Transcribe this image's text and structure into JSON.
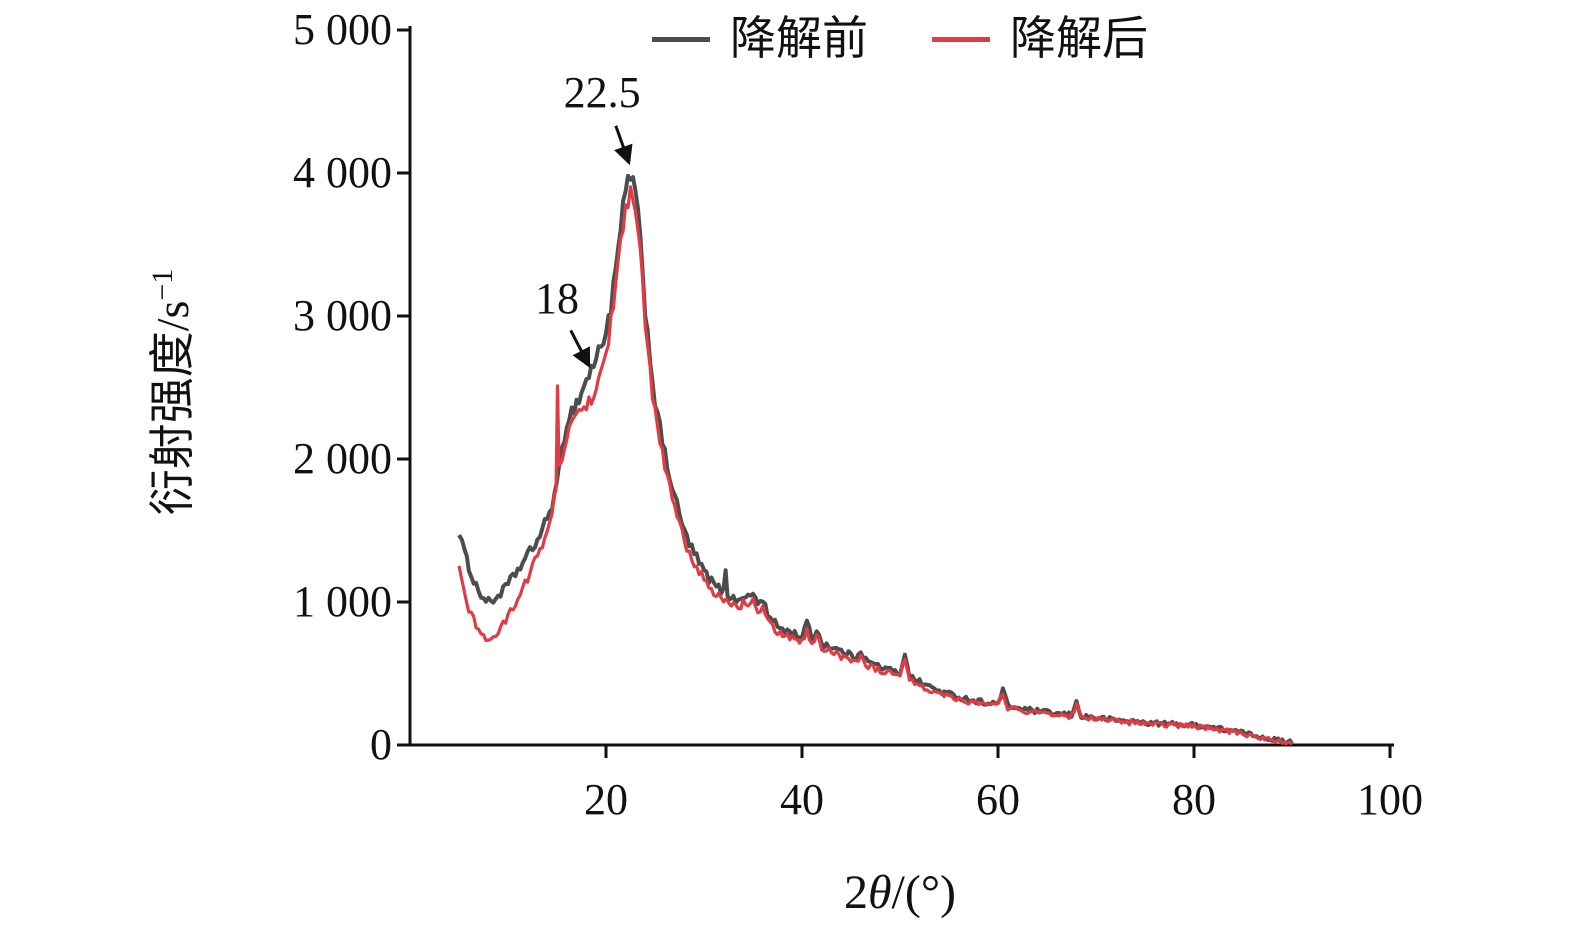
{
  "figure": {
    "background": "#ffffff",
    "text_color": "#111111"
  },
  "axes": {
    "ylabel_text": "衍射强度/s",
    "ylabel_sup": "−1",
    "xlabel_pre": "2",
    "xlabel_theta": "θ",
    "xlabel_post": "/(°)"
  },
  "chart_data": {
    "type": "line",
    "title": "",
    "xlabel": "2θ/(°)",
    "ylabel": "衍射强度/s⁻¹",
    "xlim": [
      0,
      100
    ],
    "ylim": [
      0,
      5000
    ],
    "grid": false,
    "legend_position": "top-center",
    "x_ticks": [
      {
        "v": 20,
        "label": "20"
      },
      {
        "v": 40,
        "label": "40"
      },
      {
        "v": 60,
        "label": "60"
      },
      {
        "v": 80,
        "label": "80"
      },
      {
        "v": 100,
        "label": "100"
      }
    ],
    "y_ticks": [
      {
        "v": 0,
        "label": "0"
      },
      {
        "v": 1000,
        "label": "1 000"
      },
      {
        "v": 2000,
        "label": "2 000"
      },
      {
        "v": 3000,
        "label": "3 000"
      },
      {
        "v": 4000,
        "label": "4 000"
      },
      {
        "v": 5000,
        "label": "5 000"
      }
    ],
    "annotations": [
      {
        "label": "22.5",
        "text_x": 19.6,
        "text_y": 4560,
        "arrow_from_x": 21.0,
        "arrow_from_y": 4330,
        "arrow_to_x": 22.3,
        "arrow_to_y": 4080
      },
      {
        "label": "18",
        "text_x": 15.0,
        "text_y": 3120,
        "arrow_from_x": 16.4,
        "arrow_from_y": 2900,
        "arrow_to_x": 18.2,
        "arrow_to_y": 2660
      }
    ],
    "series": [
      {
        "name": "降解前",
        "color": "#4d4d4d",
        "points": [
          [
            5,
            1500
          ],
          [
            5.3,
            1420
          ],
          [
            5.6,
            1330
          ],
          [
            6,
            1250
          ],
          [
            6.5,
            1150
          ],
          [
            7,
            1080
          ],
          [
            7.5,
            1025
          ],
          [
            8,
            1000
          ],
          [
            8.5,
            1010
          ],
          [
            9,
            1045
          ],
          [
            9.5,
            1080
          ],
          [
            10,
            1125
          ],
          [
            10.5,
            1170
          ],
          [
            11,
            1225
          ],
          [
            11.5,
            1270
          ],
          [
            12,
            1325
          ],
          [
            12.5,
            1375
          ],
          [
            13,
            1435
          ],
          [
            13.5,
            1500
          ],
          [
            14,
            1585
          ],
          [
            14.5,
            1690
          ],
          [
            15,
            1810
          ],
          [
            15.5,
            2060
          ],
          [
            16,
            2260
          ],
          [
            16.5,
            2330
          ],
          [
            17,
            2390
          ],
          [
            17.5,
            2460
          ],
          [
            18,
            2555
          ],
          [
            18.5,
            2625
          ],
          [
            19,
            2705
          ],
          [
            19.5,
            2790
          ],
          [
            20,
            2905
          ],
          [
            20.5,
            3060
          ],
          [
            21,
            3310
          ],
          [
            21.5,
            3610
          ],
          [
            22,
            3860
          ],
          [
            22.5,
            4000
          ],
          [
            23,
            3860
          ],
          [
            23.5,
            3510
          ],
          [
            24,
            3060
          ],
          [
            24.5,
            2710
          ],
          [
            25,
            2410
          ],
          [
            25.5,
            2210
          ],
          [
            26,
            2030
          ],
          [
            26.5,
            1880
          ],
          [
            27,
            1740
          ],
          [
            27.5,
            1610
          ],
          [
            28,
            1490
          ],
          [
            28.5,
            1410
          ],
          [
            29,
            1340
          ],
          [
            29.5,
            1275
          ],
          [
            30,
            1215
          ],
          [
            30.5,
            1165
          ],
          [
            31,
            1125
          ],
          [
            31.5,
            1095
          ],
          [
            32,
            1070
          ],
          [
            32.2,
            1240
          ],
          [
            32.4,
            1055
          ],
          [
            33,
            1025
          ],
          [
            33.5,
            1000
          ],
          [
            34,
            1055
          ],
          [
            34.5,
            1025
          ],
          [
            35,
            1065
          ],
          [
            35.5,
            985
          ],
          [
            36,
            1025
          ],
          [
            36.5,
            905
          ],
          [
            37,
            865
          ],
          [
            37.5,
            835
          ],
          [
            38,
            815
          ],
          [
            38.5,
            795
          ],
          [
            39,
            785
          ],
          [
            39.5,
            770
          ],
          [
            40,
            760
          ],
          [
            40.5,
            855
          ],
          [
            41,
            745
          ],
          [
            41.5,
            805
          ],
          [
            42,
            715
          ],
          [
            42.5,
            700
          ],
          [
            43,
            685
          ],
          [
            43.5,
            670
          ],
          [
            44,
            655
          ],
          [
            44.5,
            640
          ],
          [
            45,
            625
          ],
          [
            45.5,
            615
          ],
          [
            46,
            665
          ],
          [
            46.5,
            595
          ],
          [
            47,
            575
          ],
          [
            47.5,
            560
          ],
          [
            48,
            548
          ],
          [
            48.5,
            535
          ],
          [
            49,
            522
          ],
          [
            49.5,
            510
          ],
          [
            50,
            500
          ],
          [
            50.5,
            645
          ],
          [
            51,
            475
          ],
          [
            51.5,
            458
          ],
          [
            52,
            442
          ],
          [
            52.5,
            424
          ],
          [
            53,
            408
          ],
          [
            53.5,
            393
          ],
          [
            54,
            380
          ],
          [
            54.5,
            368
          ],
          [
            55,
            356
          ],
          [
            55.5,
            345
          ],
          [
            56,
            336
          ],
          [
            56.5,
            327
          ],
          [
            57,
            319
          ],
          [
            57.5,
            312
          ],
          [
            58,
            306
          ],
          [
            58.5,
            300
          ],
          [
            59,
            295
          ],
          [
            59.5,
            290
          ],
          [
            60,
            286
          ],
          [
            60.5,
            392
          ],
          [
            61,
            272
          ],
          [
            61.5,
            265
          ],
          [
            62,
            258
          ],
          [
            62.5,
            252
          ],
          [
            63,
            246
          ],
          [
            63.5,
            241
          ],
          [
            64,
            236
          ],
          [
            64.5,
            231
          ],
          [
            65,
            227
          ],
          [
            65.5,
            222
          ],
          [
            66,
            218
          ],
          [
            66.5,
            215
          ],
          [
            67,
            212
          ],
          [
            67.5,
            209
          ],
          [
            68,
            296
          ],
          [
            68.5,
            204
          ],
          [
            69,
            198
          ],
          [
            69.5,
            194
          ],
          [
            70,
            190
          ],
          [
            71,
            182
          ],
          [
            72,
            175
          ],
          [
            73,
            168
          ],
          [
            74,
            162
          ],
          [
            75,
            157
          ],
          [
            76,
            152
          ],
          [
            77,
            149
          ],
          [
            78,
            146
          ],
          [
            79,
            143
          ],
          [
            80,
            139
          ],
          [
            81,
            132
          ],
          [
            82,
            122
          ],
          [
            83,
            110
          ],
          [
            84,
            98
          ],
          [
            85,
            85
          ],
          [
            86,
            70
          ],
          [
            87,
            55
          ],
          [
            88,
            40
          ],
          [
            89,
            28
          ],
          [
            90,
            18
          ]
        ]
      },
      {
        "name": "降解后",
        "color": "#e23b44",
        "points": [
          [
            5,
            1220
          ],
          [
            5.3,
            1130
          ],
          [
            5.6,
            1040
          ],
          [
            6,
            955
          ],
          [
            6.5,
            870
          ],
          [
            7,
            805
          ],
          [
            7.5,
            762
          ],
          [
            8,
            740
          ],
          [
            8.5,
            752
          ],
          [
            9,
            790
          ],
          [
            9.5,
            840
          ],
          [
            10,
            900
          ],
          [
            10.5,
            960
          ],
          [
            11,
            1030
          ],
          [
            11.5,
            1100
          ],
          [
            12,
            1170
          ],
          [
            12.5,
            1245
          ],
          [
            13,
            1320
          ],
          [
            13.5,
            1400
          ],
          [
            14,
            1500
          ],
          [
            14.5,
            1640
          ],
          [
            14.9,
            1800
          ],
          [
            15.05,
            2480
          ],
          [
            15.2,
            1960
          ],
          [
            15.5,
            2010
          ],
          [
            16,
            2160
          ],
          [
            16.5,
            2235
          ],
          [
            17,
            2285
          ],
          [
            17.5,
            2325
          ],
          [
            18,
            2385
          ],
          [
            18.5,
            2435
          ],
          [
            19,
            2505
          ],
          [
            19.5,
            2605
          ],
          [
            20,
            2755
          ],
          [
            20.5,
            2955
          ],
          [
            21,
            3205
          ],
          [
            21.5,
            3505
          ],
          [
            22,
            3755
          ],
          [
            22.5,
            3900
          ],
          [
            23,
            3755
          ],
          [
            23.5,
            3405
          ],
          [
            24,
            2955
          ],
          [
            24.5,
            2605
          ],
          [
            25,
            2325
          ],
          [
            25.5,
            2125
          ],
          [
            26,
            1955
          ],
          [
            26.5,
            1805
          ],
          [
            27,
            1665
          ],
          [
            27.5,
            1535
          ],
          [
            28,
            1425
          ],
          [
            28.5,
            1345
          ],
          [
            29,
            1275
          ],
          [
            29.5,
            1215
          ],
          [
            30,
            1155
          ],
          [
            30.5,
            1112
          ],
          [
            31,
            1072
          ],
          [
            31.5,
            1042
          ],
          [
            32,
            1015
          ],
          [
            33,
            978
          ],
          [
            33.5,
            952
          ],
          [
            34,
            992
          ],
          [
            34.5,
            962
          ],
          [
            35,
            1002
          ],
          [
            35.5,
            932
          ],
          [
            36,
            962
          ],
          [
            36.5,
            862
          ],
          [
            37,
            822
          ],
          [
            37.5,
            795
          ],
          [
            38,
            778
          ],
          [
            38.5,
            760
          ],
          [
            39,
            748
          ],
          [
            39.5,
            735
          ],
          [
            40,
            725
          ],
          [
            40.5,
            802
          ],
          [
            41,
            708
          ],
          [
            41.5,
            762
          ],
          [
            42,
            682
          ],
          [
            42.5,
            668
          ],
          [
            43,
            652
          ],
          [
            43.5,
            638
          ],
          [
            44,
            622
          ],
          [
            44.5,
            608
          ],
          [
            45,
            596
          ],
          [
            45.5,
            586
          ],
          [
            46,
            628
          ],
          [
            46.5,
            566
          ],
          [
            47,
            546
          ],
          [
            47.5,
            532
          ],
          [
            48,
            520
          ],
          [
            48.5,
            508
          ],
          [
            49,
            497
          ],
          [
            49.5,
            487
          ],
          [
            50,
            478
          ],
          [
            50.5,
            602
          ],
          [
            51,
            452
          ],
          [
            51.5,
            436
          ],
          [
            52,
            421
          ],
          [
            52.5,
            404
          ],
          [
            53,
            389
          ],
          [
            53.5,
            375
          ],
          [
            54,
            363
          ],
          [
            54.5,
            351
          ],
          [
            55,
            340
          ],
          [
            55.5,
            330
          ],
          [
            56,
            321
          ],
          [
            56.5,
            313
          ],
          [
            57,
            305
          ],
          [
            57.5,
            299
          ],
          [
            58,
            293
          ],
          [
            58.5,
            288
          ],
          [
            59,
            283
          ],
          [
            59.5,
            279
          ],
          [
            60,
            275
          ],
          [
            60.5,
            372
          ],
          [
            61,
            261
          ],
          [
            61.5,
            254
          ],
          [
            62,
            248
          ],
          [
            62.5,
            242
          ],
          [
            63,
            236
          ],
          [
            63.5,
            231
          ],
          [
            64,
            226
          ],
          [
            64.5,
            222
          ],
          [
            65,
            218
          ],
          [
            65.5,
            214
          ],
          [
            66,
            210
          ],
          [
            66.5,
            207
          ],
          [
            67,
            204
          ],
          [
            67.5,
            201
          ],
          [
            68,
            282
          ],
          [
            68.5,
            196
          ],
          [
            69,
            190
          ],
          [
            69.5,
            186
          ],
          [
            70,
            182
          ],
          [
            71,
            174
          ],
          [
            72,
            167
          ],
          [
            73,
            160
          ],
          [
            74,
            154
          ],
          [
            75,
            149
          ],
          [
            76,
            144
          ],
          [
            77,
            141
          ],
          [
            78,
            138
          ],
          [
            79,
            135
          ],
          [
            80,
            131
          ],
          [
            81,
            124
          ],
          [
            82,
            114
          ],
          [
            83,
            102
          ],
          [
            84,
            90
          ],
          [
            85,
            77
          ],
          [
            86,
            62
          ],
          [
            87,
            48
          ],
          [
            88,
            34
          ],
          [
            89,
            22
          ],
          [
            90,
            13
          ]
        ]
      }
    ]
  }
}
